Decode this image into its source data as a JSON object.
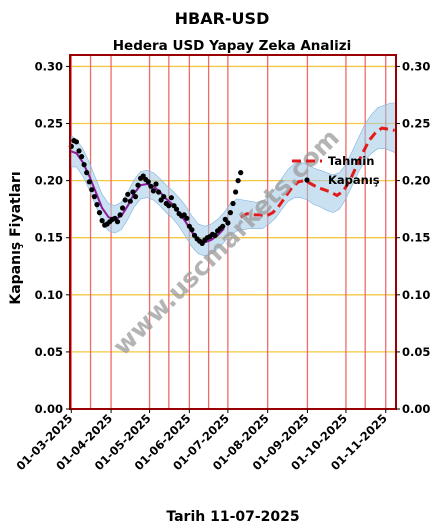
{
  "chart_data": {
    "type": "line",
    "title": "HBAR-USD",
    "subtitle": "Hedera USD Yapay Zeka Analizi",
    "xlabel": "Tarih 11-07-2025",
    "ylabel": "Kapanış Fiyatları",
    "watermark": "www.uscmarkets.com",
    "x_range": [
      "2025-02-28",
      "2025-11-09"
    ],
    "ylim": [
      0,
      0.31
    ],
    "y_ticks": [
      0.0,
      0.05,
      0.1,
      0.15,
      0.2,
      0.25,
      0.3
    ],
    "y_tick_labels": [
      "0.00",
      "0.05",
      "0.10",
      "0.15",
      "0.20",
      "0.25",
      "0.30"
    ],
    "x_ticks": [
      "2025-03-01",
      "2025-04-01",
      "2025-05-01",
      "2025-06-01",
      "2025-07-01",
      "2025-08-01",
      "2025-09-01",
      "2025-10-01",
      "2025-11-01"
    ],
    "x_tick_labels": [
      "01-03-2025",
      "01-04-2025",
      "01-05-2025",
      "01-06-2025",
      "01-07-2025",
      "01-08-2025",
      "01-09-2025",
      "01-10-2025",
      "01-11-2025"
    ],
    "vlines": [
      "2025-03-01",
      "2025-03-16",
      "2025-04-01",
      "2025-05-01",
      "2025-05-16",
      "2025-06-01",
      "2025-06-16",
      "2025-07-01",
      "2025-08-01",
      "2025-09-01",
      "2025-10-01",
      "2025-10-16",
      "2025-11-01"
    ],
    "legend": {
      "placement": "right",
      "entries": [
        "Tahmin",
        "Kapanış"
      ]
    },
    "colors": {
      "forecast": "#e31a1c",
      "close_points": "#000000",
      "fit_line": "#8b1a9e",
      "band": "#9ec9e8",
      "hgrid": "#f5c842",
      "vlines": "#ee6b6b",
      "frame": "#990000",
      "watermark": "#9b9b9b"
    },
    "series": [
      {
        "name": "Kapanış",
        "style": "scatter",
        "x": [
          "2025-03-01",
          "2025-03-03",
          "2025-03-05",
          "2025-03-07",
          "2025-03-09",
          "2025-03-11",
          "2025-03-13",
          "2025-03-15",
          "2025-03-17",
          "2025-03-19",
          "2025-03-21",
          "2025-03-23",
          "2025-03-25",
          "2025-03-27",
          "2025-03-29",
          "2025-03-31",
          "2025-04-02",
          "2025-04-04",
          "2025-04-06",
          "2025-04-08",
          "2025-04-10",
          "2025-04-12",
          "2025-04-14",
          "2025-04-16",
          "2025-04-18",
          "2025-04-20",
          "2025-04-22",
          "2025-04-24",
          "2025-04-26",
          "2025-04-28",
          "2025-04-30",
          "2025-05-02",
          "2025-05-04",
          "2025-05-06",
          "2025-05-08",
          "2025-05-10",
          "2025-05-12",
          "2025-05-14",
          "2025-05-16",
          "2025-05-18",
          "2025-05-20",
          "2025-05-22",
          "2025-05-24",
          "2025-05-26",
          "2025-05-28",
          "2025-05-30",
          "2025-06-01",
          "2025-06-03",
          "2025-06-05",
          "2025-06-07",
          "2025-06-09",
          "2025-06-11",
          "2025-06-13",
          "2025-06-15",
          "2025-06-17",
          "2025-06-19",
          "2025-06-21",
          "2025-06-23",
          "2025-06-25",
          "2025-06-27",
          "2025-06-29",
          "2025-07-01",
          "2025-07-03",
          "2025-07-05",
          "2025-07-07",
          "2025-07-09",
          "2025-07-11"
        ],
        "values": [
          0.23,
          0.235,
          0.234,
          0.226,
          0.221,
          0.214,
          0.207,
          0.199,
          0.192,
          0.186,
          0.179,
          0.172,
          0.165,
          0.161,
          0.162,
          0.164,
          0.166,
          0.167,
          0.164,
          0.17,
          0.176,
          0.183,
          0.188,
          0.182,
          0.19,
          0.186,
          0.196,
          0.202,
          0.204,
          0.201,
          0.199,
          0.195,
          0.191,
          0.197,
          0.19,
          0.183,
          0.186,
          0.18,
          0.178,
          0.185,
          0.178,
          0.175,
          0.171,
          0.169,
          0.17,
          0.167,
          0.16,
          0.157,
          0.152,
          0.149,
          0.147,
          0.145,
          0.148,
          0.15,
          0.151,
          0.153,
          0.152,
          0.156,
          0.158,
          0.16,
          0.166,
          0.163,
          0.172,
          0.18,
          0.19,
          0.2,
          0.207
        ]
      },
      {
        "name": "",
        "style": "line",
        "x": [
          "2025-02-28",
          "2025-03-05",
          "2025-03-10",
          "2025-03-15",
          "2025-03-20",
          "2025-03-25",
          "2025-03-30",
          "2025-04-04",
          "2025-04-09",
          "2025-04-14",
          "2025-04-19",
          "2025-04-24",
          "2025-04-29",
          "2025-05-04",
          "2025-05-09",
          "2025-05-14",
          "2025-05-19",
          "2025-05-24",
          "2025-05-29",
          "2025-06-03",
          "2025-06-08",
          "2025-06-13",
          "2025-06-18",
          "2025-06-23",
          "2025-06-28"
        ],
        "values": [
          0.226,
          0.224,
          0.216,
          0.204,
          0.19,
          0.176,
          0.168,
          0.166,
          0.169,
          0.178,
          0.189,
          0.196,
          0.197,
          0.195,
          0.19,
          0.184,
          0.179,
          0.172,
          0.164,
          0.155,
          0.148,
          0.146,
          0.148,
          0.152,
          0.158
        ]
      },
      {
        "name": "Tahmin",
        "style": "dashed",
        "x": [
          "2025-07-11",
          "2025-07-16",
          "2025-07-21",
          "2025-07-26",
          "2025-07-31",
          "2025-08-05",
          "2025-08-10",
          "2025-08-15",
          "2025-08-20",
          "2025-08-25",
          "2025-08-30",
          "2025-09-04",
          "2025-09-09",
          "2025-09-14",
          "2025-09-19",
          "2025-09-24",
          "2025-09-29",
          "2025-10-04",
          "2025-10-09",
          "2025-10-14",
          "2025-10-19",
          "2025-10-24",
          "2025-10-29",
          "2025-11-03",
          "2025-11-08"
        ],
        "values": [
          0.168,
          0.171,
          0.17,
          0.17,
          0.169,
          0.172,
          0.178,
          0.186,
          0.194,
          0.199,
          0.2,
          0.197,
          0.194,
          0.192,
          0.19,
          0.187,
          0.191,
          0.2,
          0.212,
          0.224,
          0.235,
          0.242,
          0.246,
          0.245,
          0.244
        ]
      }
    ],
    "band": {
      "x": [
        "2025-02-28",
        "2025-03-05",
        "2025-03-10",
        "2025-03-15",
        "2025-03-20",
        "2025-03-25",
        "2025-03-30",
        "2025-04-04",
        "2025-04-09",
        "2025-04-14",
        "2025-04-19",
        "2025-04-24",
        "2025-04-29",
        "2025-05-04",
        "2025-05-09",
        "2025-05-14",
        "2025-05-19",
        "2025-05-24",
        "2025-05-29",
        "2025-06-03",
        "2025-06-08",
        "2025-06-13",
        "2025-06-18",
        "2025-06-23",
        "2025-06-28",
        "2025-07-03",
        "2025-07-08",
        "2025-07-13",
        "2025-07-18",
        "2025-07-23",
        "2025-07-28",
        "2025-08-02",
        "2025-08-07",
        "2025-08-12",
        "2025-08-17",
        "2025-08-22",
        "2025-08-27",
        "2025-09-01",
        "2025-09-06",
        "2025-09-11",
        "2025-09-16",
        "2025-09-21",
        "2025-09-26",
        "2025-10-01",
        "2025-10-06",
        "2025-10-11",
        "2025-10-16",
        "2025-10-21",
        "2025-10-26",
        "2025-10-31",
        "2025-11-05",
        "2025-11-09"
      ],
      "upper": [
        0.24,
        0.236,
        0.228,
        0.216,
        0.202,
        0.188,
        0.18,
        0.178,
        0.181,
        0.19,
        0.201,
        0.208,
        0.209,
        0.207,
        0.202,
        0.196,
        0.191,
        0.185,
        0.178,
        0.169,
        0.162,
        0.16,
        0.162,
        0.166,
        0.172,
        0.18,
        0.184,
        0.183,
        0.182,
        0.181,
        0.182,
        0.186,
        0.193,
        0.202,
        0.21,
        0.215,
        0.216,
        0.214,
        0.211,
        0.209,
        0.207,
        0.205,
        0.207,
        0.214,
        0.226,
        0.238,
        0.25,
        0.258,
        0.264,
        0.266,
        0.268,
        0.268
      ],
      "lower": [
        0.212,
        0.212,
        0.204,
        0.192,
        0.178,
        0.164,
        0.156,
        0.154,
        0.157,
        0.166,
        0.177,
        0.184,
        0.185,
        0.183,
        0.178,
        0.172,
        0.167,
        0.16,
        0.151,
        0.142,
        0.136,
        0.134,
        0.136,
        0.14,
        0.146,
        0.152,
        0.156,
        0.157,
        0.158,
        0.158,
        0.158,
        0.162,
        0.167,
        0.175,
        0.182,
        0.185,
        0.185,
        0.183,
        0.179,
        0.177,
        0.174,
        0.172,
        0.175,
        0.184,
        0.196,
        0.208,
        0.218,
        0.224,
        0.228,
        0.228,
        0.226,
        0.224
      ]
    }
  }
}
